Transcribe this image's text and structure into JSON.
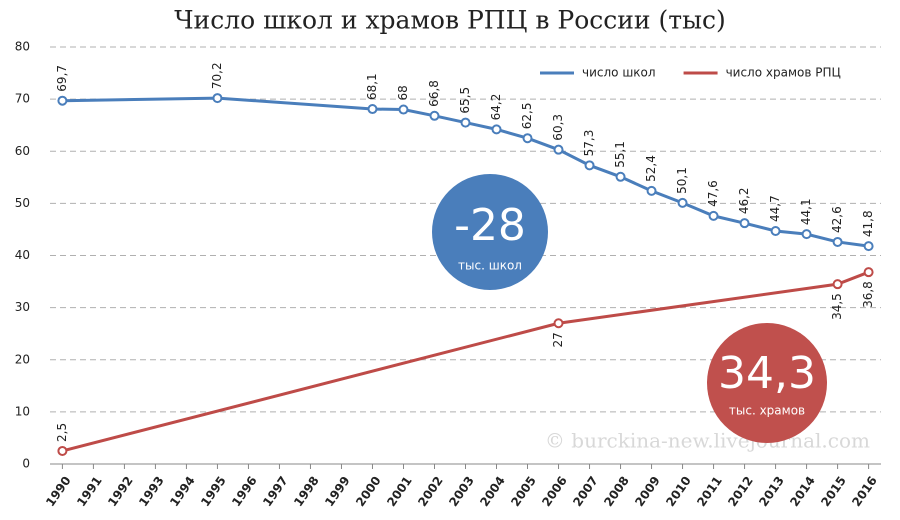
{
  "chart_data": {
    "type": "line",
    "title": "Число школ и храмов РПЦ в России (тыс)",
    "xlim": [
      1989.6,
      2016.4
    ],
    "xticks": [
      1990,
      1991,
      1992,
      1993,
      1994,
      1995,
      1996,
      1997,
      1998,
      1999,
      2000,
      2001,
      2002,
      2003,
      2004,
      2005,
      2006,
      2007,
      2008,
      2009,
      2010,
      2011,
      2012,
      2013,
      2014,
      2015,
      2016
    ],
    "ylim": [
      0,
      80
    ],
    "yticks": [
      0,
      10,
      20,
      30,
      40,
      50,
      60,
      70,
      80
    ],
    "grid": true,
    "legend": "top-right",
    "series": [
      {
        "name": "число школ",
        "color": "#4a7ebb",
        "x": [
          1990,
          1995,
          2000,
          2001,
          2002,
          2003,
          2004,
          2005,
          2006,
          2007,
          2008,
          2009,
          2010,
          2011,
          2012,
          2013,
          2014,
          2015,
          2016
        ],
        "values": [
          69.7,
          70.2,
          68.1,
          68,
          66.8,
          65.5,
          64.2,
          62.5,
          60.3,
          57.3,
          55.1,
          52.4,
          50.1,
          47.6,
          46.2,
          44.7,
          44.1,
          42.6,
          41.8
        ],
        "value_labels": [
          "69,7",
          "70,2",
          "68,1",
          "68",
          "66,8",
          "65,5",
          "64,2",
          "62,5",
          "60,3",
          "57,3",
          "55,1",
          "52,4",
          "50,1",
          "47,6",
          "46,2",
          "44,7",
          "44,1",
          "42,6",
          "41,8"
        ]
      },
      {
        "name": "число храмов РПЦ",
        "color": "#be4b48",
        "x": [
          1990,
          2006,
          2015,
          2016
        ],
        "values": [
          2.5,
          27,
          34.5,
          36.8
        ],
        "value_labels": [
          "2,5",
          "27",
          "34,5",
          "36,8"
        ]
      }
    ],
    "annotations": [
      {
        "text": "-28",
        "subtext": "тыс. школ"
      },
      {
        "text": "34,3",
        "subtext": "тыс. храмов"
      },
      {
        "text": "© burckina-new.livejournal.com"
      }
    ]
  }
}
